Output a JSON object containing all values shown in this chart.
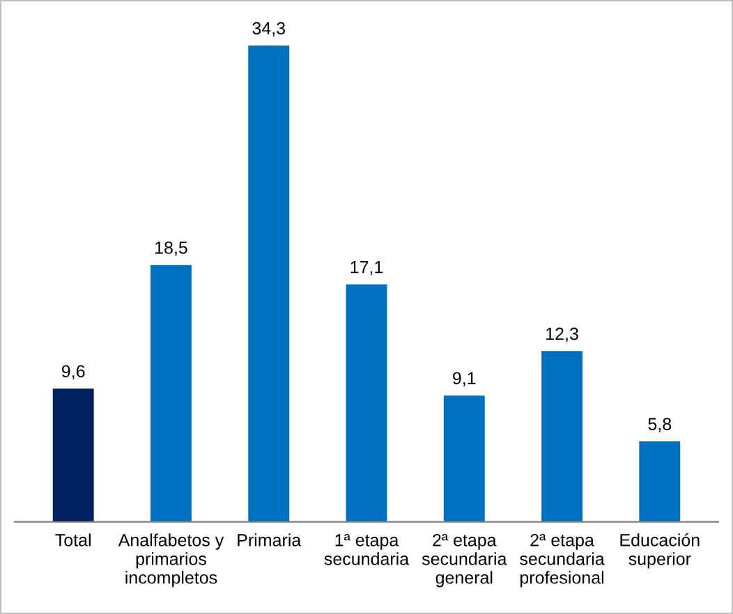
{
  "chart_data": {
    "type": "bar",
    "categories": [
      "Total",
      "Analfabetos y\nprimarios\nincompletos",
      "Primaria",
      "1ª etapa\nsecundaria",
      "2ª etapa\nsecundaria\ngeneral",
      "2ª etapa\nsecundaria\nprofesional",
      "Educación\nsuperior"
    ],
    "values": [
      9.6,
      18.5,
      34.3,
      17.1,
      9.1,
      12.3,
      5.8
    ],
    "colors": [
      "#002060",
      "#0070c0",
      "#0070c0",
      "#0070c0",
      "#0070c0",
      "#0070c0",
      "#0070c0"
    ],
    "value_labels": [
      "9,6",
      "18,5",
      "34,3",
      "17,1",
      "9,1",
      "12,3",
      "5,8"
    ],
    "grid": false,
    "legend": false
  }
}
